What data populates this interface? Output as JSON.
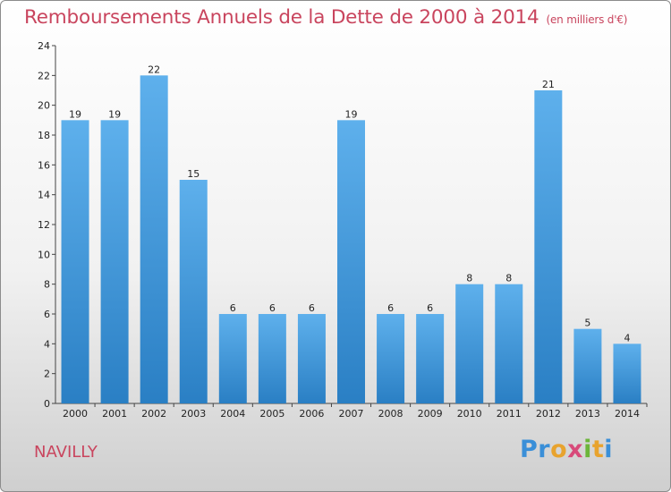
{
  "header": {
    "title": "Remboursements Annuels de la Dette de 2000 à 2014",
    "unit": "(en milliers d'€)"
  },
  "footer": {
    "commune": "NAVILLY",
    "logo": "Proxiti"
  },
  "colors": {
    "title": "#c9455e",
    "bar_top": "#5eb0ec",
    "bar_bottom": "#2a7fc4"
  },
  "chart_data": {
    "type": "bar",
    "title": "Remboursements Annuels de la Dette de 2000 à 2014",
    "subtitle": "(en milliers d'€)",
    "xlabel": "",
    "ylabel": "",
    "categories": [
      "2000",
      "2001",
      "2002",
      "2003",
      "2004",
      "2005",
      "2006",
      "2007",
      "2008",
      "2009",
      "2010",
      "2011",
      "2012",
      "2013",
      "2014"
    ],
    "values": [
      19,
      19,
      22,
      15,
      6,
      6,
      6,
      19,
      6,
      6,
      8,
      8,
      21,
      5,
      4
    ],
    "ylim": [
      0,
      24
    ],
    "yticks": [
      0,
      2,
      4,
      6,
      8,
      10,
      12,
      14,
      16,
      18,
      20,
      22,
      24
    ],
    "grid": false,
    "legend": "none"
  }
}
